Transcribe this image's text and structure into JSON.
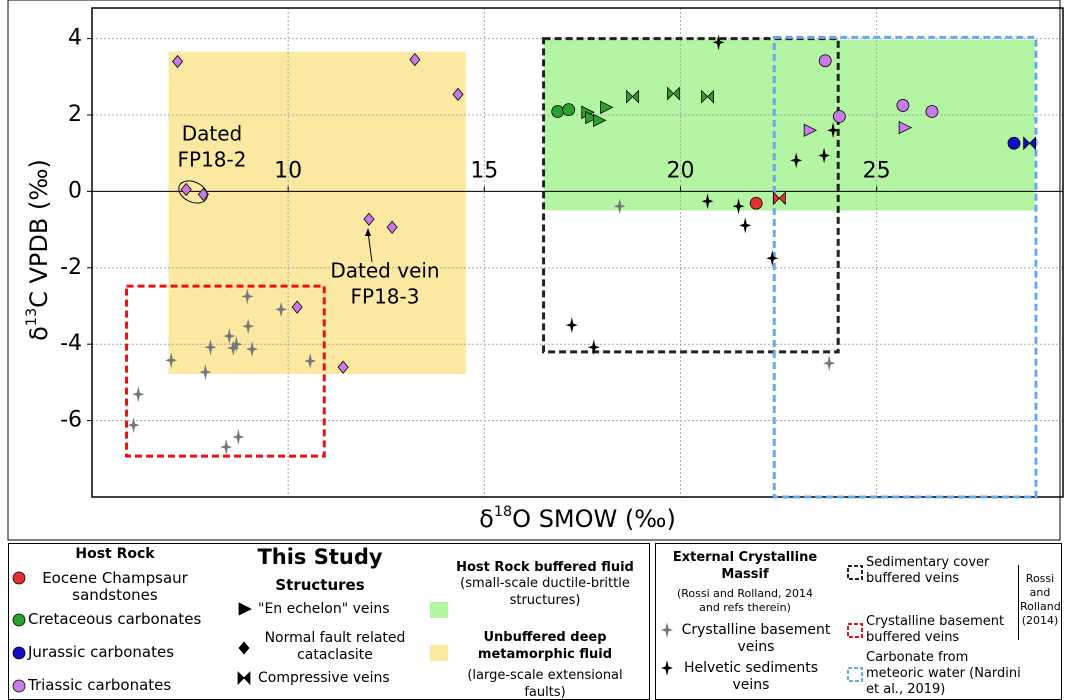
{
  "chart_data": {
    "type": "scatter",
    "xlabel": [
      "δ",
      "18",
      "O SMOW (‰)"
    ],
    "ylabel": [
      "δ",
      "13",
      "C VPDB (‰)"
    ],
    "xlim": [
      5,
      29.75
    ],
    "ylim": [
      -8,
      4.8
    ],
    "xticks": [
      10,
      15,
      20,
      25
    ],
    "yticks": [
      -6,
      -4,
      -2,
      0,
      2,
      4
    ],
    "grid": true,
    "regions": [
      {
        "xlim": [
          6.95,
          14.53
        ],
        "ylim": [
          -4.78,
          3.66
        ],
        "color": "#fbe9a2",
        "style": "fill"
      },
      {
        "xlim": [
          16.51,
          29.03
        ],
        "ylim": [
          -0.5,
          3.97
        ],
        "color": "#b4f5a4",
        "style": "fill"
      },
      {
        "xlim": [
          16.51,
          24.02
        ],
        "ylim": [
          -4.2,
          4.0
        ],
        "color": "#222222",
        "style": "dashed"
      },
      {
        "xlim": [
          5.88,
          10.92
        ],
        "ylim": [
          -6.93,
          -2.48
        ],
        "color": "#ee1111",
        "style": "dashed"
      },
      {
        "xlim": [
          22.39,
          29.06
        ],
        "ylim": [
          -8,
          4.03
        ],
        "color": "#66aaee",
        "style": "dashed"
      }
    ],
    "series": [
      {
        "marker": "diamond",
        "color": "#c77ae8",
        "x": [
          7.18,
          13.23,
          14.33,
          7.4,
          7.84,
          12.06,
          12.65,
          10.23,
          11.4
        ],
        "y": [
          3.4,
          3.45,
          2.54,
          0.05,
          -0.08,
          -0.73,
          -0.94,
          -3.03,
          -4.6
        ]
      },
      {
        "marker": "circle",
        "color": "#c77ae8",
        "x": [
          23.69,
          24.05,
          25.67,
          26.41
        ],
        "y": [
          3.42,
          1.96,
          2.25,
          2.09
        ]
      },
      {
        "marker": "triangle",
        "color": "#c77ae8",
        "x": [
          23.28,
          25.7
        ],
        "y": [
          1.6,
          1.67
        ]
      },
      {
        "marker": "circle",
        "color": "#2ca02c",
        "x": [
          16.87,
          17.15
        ],
        "y": [
          2.09,
          2.14
        ]
      },
      {
        "marker": "triangle",
        "color": "#2ca02c",
        "x": [
          17.61,
          17.71,
          17.91,
          18.09
        ],
        "y": [
          2.07,
          1.93,
          1.86,
          2.2
        ]
      },
      {
        "marker": "bowtie",
        "color": "#2ca02c",
        "x": [
          18.78,
          19.82,
          20.69
        ],
        "y": [
          2.48,
          2.56,
          2.48
        ]
      },
      {
        "marker": "circle",
        "color": "#e03030",
        "x": [
          21.93
        ],
        "y": [
          -0.31
        ]
      },
      {
        "marker": "bowtie",
        "color": "#e03030",
        "x": [
          22.52
        ],
        "y": [
          -0.18
        ]
      },
      {
        "marker": "circle",
        "color": "#1010c0",
        "x": [
          28.5
        ],
        "y": [
          1.26
        ]
      },
      {
        "marker": "bowtie",
        "color": "#1010c0",
        "x": [
          28.9
        ],
        "y": [
          1.26
        ]
      },
      {
        "marker": "star",
        "color": "#777777",
        "x": [
          6.06,
          6.18,
          7.02,
          7.89,
          8.02,
          8.5,
          8.6,
          8.68,
          8.96,
          8.98,
          9.08,
          9.82,
          10.56,
          8.42,
          8.73,
          18.45,
          23.79
        ],
        "y": [
          -6.12,
          -5.31,
          -4.42,
          -4.73,
          -4.08,
          -3.79,
          -4.1,
          -4.0,
          -2.75,
          -3.53,
          -4.13,
          -3.09,
          -4.44,
          -6.69,
          -6.43,
          -0.39,
          -4.5
        ]
      },
      {
        "marker": "star",
        "color": "#000000",
        "x": [
          20.97,
          22.95,
          23.66,
          23.89,
          20.69,
          21.48,
          21.65,
          22.34,
          17.23,
          17.79
        ],
        "y": [
          3.9,
          0.81,
          0.94,
          1.6,
          -0.26,
          -0.39,
          -0.89,
          -1.75,
          -3.5,
          -4.08
        ]
      }
    ],
    "annotations": [
      {
        "lines": [
          "Dated",
          "FP18-2"
        ]
      },
      {
        "lines": [
          "Dated vein",
          "FP18-3"
        ]
      }
    ]
  },
  "legend": {
    "host_rock": {
      "title": "Host Rock",
      "items": [
        {
          "label": "Eocene Champsaur sandstones",
          "color": "#e03030"
        },
        {
          "label": "Cretaceous carbonates",
          "color": "#2ca02c"
        },
        {
          "label": "Jurassic carbonates",
          "color": "#1010c0"
        },
        {
          "label": "Triassic carbonates",
          "color": "#c77ae8"
        }
      ]
    },
    "this_study": "This Study",
    "structures": {
      "title": "Structures",
      "items": [
        {
          "label": "\"En echelon\" veins"
        },
        {
          "label": "Normal fault related cataclasite"
        },
        {
          "label": "Compressive veins"
        }
      ]
    },
    "fluids": [
      {
        "title": "Host Rock buffered fluid",
        "text": "(small-scale ductile-brittle structures)",
        "color": "#b4f5a4"
      },
      {
        "title": "Unbuffered deep metamorphic fluid",
        "text": "(large-scale extensional faults)",
        "color": "#fbe9a2"
      }
    ],
    "external": {
      "title": "External Crystalline Massif",
      "text": "(Rossi and Rolland, 2014 and refs therein)",
      "items": [
        {
          "label": "Crystalline basement veins",
          "color": "#777777"
        },
        {
          "label": "Helvetic sediments veins",
          "color": "#000000"
        }
      ]
    },
    "boxes": {
      "items": [
        {
          "label": "Sedimentary cover buffered veins",
          "color": "#222222"
        },
        {
          "label": "Crystalline basement buffered veins",
          "color": "#ee1111"
        },
        {
          "label": "Carbonate from meteoric water (Nardini et al., 2019)",
          "color": "#66aaee"
        }
      ],
      "ref": "Rossi and Rolland (2014)"
    }
  }
}
